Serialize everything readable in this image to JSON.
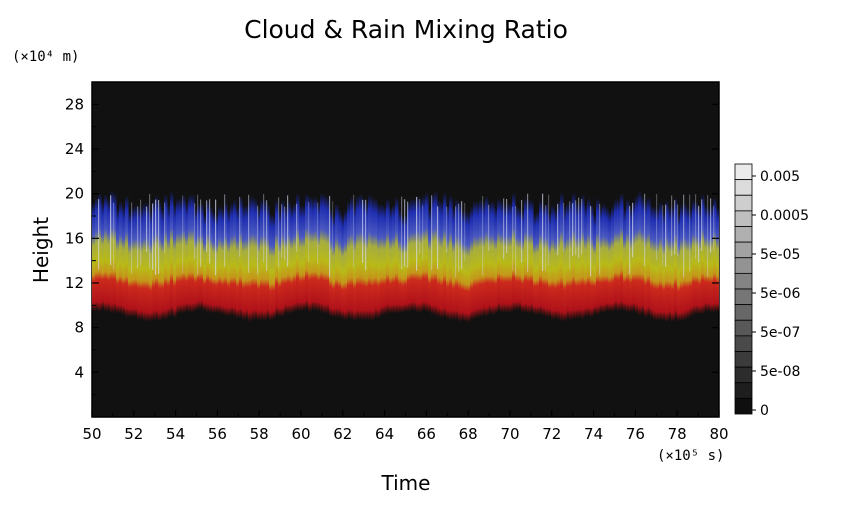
{
  "chart_data": {
    "type": "heatmap",
    "title": "Cloud & Rain Mixing Ratio",
    "xlabel": "Time",
    "ylabel": "Height",
    "x_unit_label": "(×10⁵ s)",
    "y_unit_label": "(×10⁴ m)",
    "xlim": [
      50,
      80
    ],
    "ylim": [
      0,
      30
    ],
    "x_ticks": [
      "50",
      "52",
      "54",
      "56",
      "58",
      "60",
      "62",
      "64",
      "66",
      "68",
      "70",
      "72",
      "74",
      "76",
      "78",
      "80"
    ],
    "y_ticks": [
      "4",
      "8",
      "12",
      "16",
      "20",
      "24",
      "28"
    ],
    "colorbar": {
      "labels": [
        "0.005",
        "0.0005",
        "5e-05",
        "5e-06",
        "5e-07",
        "5e-08",
        "0"
      ],
      "levels": 16
    },
    "bands": [
      {
        "name": "cloud-blue",
        "y_range": [
          16,
          20
        ],
        "color": "#2a3ab8"
      },
      {
        "name": "cloud-yellow",
        "y_range": [
          12.5,
          16
        ],
        "color": "#b6b818"
      },
      {
        "name": "rain-red",
        "y_range": [
          9.5,
          12.5
        ],
        "color": "#c8161a"
      }
    ],
    "background_color": "#111111"
  }
}
